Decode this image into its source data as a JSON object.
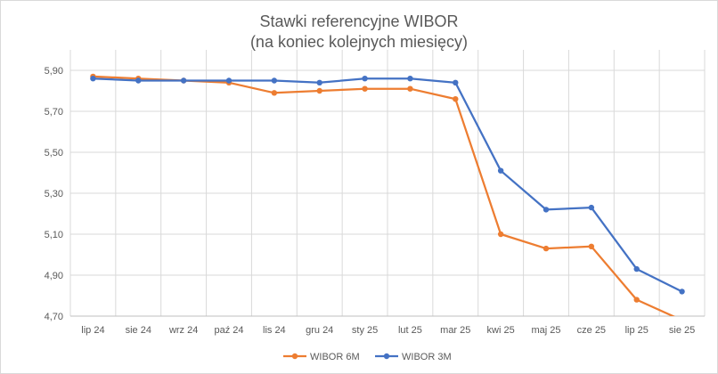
{
  "chart_data": {
    "type": "line",
    "title": "Stawki referencyjne WIBOR",
    "subtitle": "(na koniec kolejnych miesięcy)",
    "xlabel": "",
    "ylabel": "",
    "categories": [
      "lip 24",
      "sie 24",
      "wrz 24",
      "paź 24",
      "lis 24",
      "gru 24",
      "sty 25",
      "lut 25",
      "mar 25",
      "kwi 25",
      "maj 25",
      "cze 25",
      "lip 25",
      "sie 25"
    ],
    "y_ticks": [
      "5,90",
      "5,70",
      "5,50",
      "5,30",
      "5,10",
      "4,90",
      "4,70"
    ],
    "ylim": [
      4.7,
      6.0
    ],
    "grid": "horizontal",
    "legend_position": "bottom",
    "series": [
      {
        "name": "WIBOR 6M",
        "color": "#ed7d31",
        "values": [
          5.87,
          5.86,
          5.85,
          5.84,
          5.79,
          5.8,
          5.81,
          5.81,
          5.76,
          5.1,
          5.03,
          5.04,
          4.78,
          4.68
        ]
      },
      {
        "name": "WIBOR 3M",
        "color": "#4472c4",
        "values": [
          5.86,
          5.85,
          5.85,
          5.85,
          5.85,
          5.84,
          5.86,
          5.86,
          5.84,
          5.41,
          5.22,
          5.23,
          4.93,
          4.82
        ]
      }
    ]
  }
}
